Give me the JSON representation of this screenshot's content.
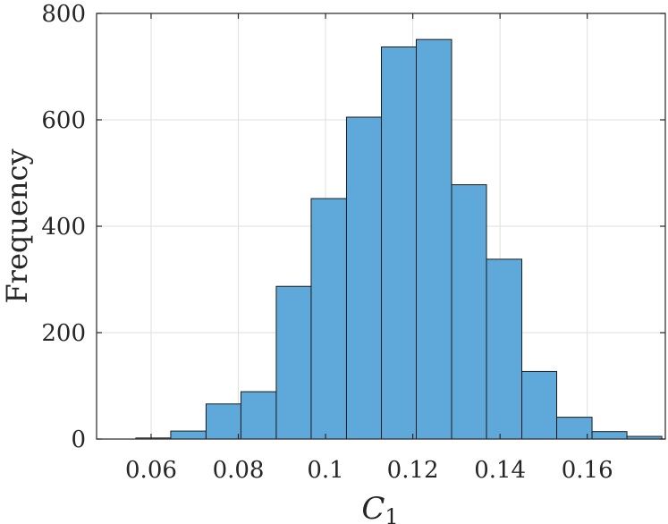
{
  "chart_data": {
    "type": "bar",
    "xlabel": "C",
    "xlabel_subscript": "1",
    "ylabel": "Frequency",
    "xlim": [
      0.0475,
      0.1779
    ],
    "ylim": [
      0,
      800
    ],
    "xticks": [
      0.06,
      0.08,
      0.1,
      0.12,
      0.14,
      0.16
    ],
    "xtick_labels": [
      "0.06",
      "0.08",
      "0.1",
      "0.12",
      "0.14",
      "0.16"
    ],
    "yticks": [
      0,
      200,
      400,
      600,
      800
    ],
    "ytick_labels": [
      "0",
      "200",
      "400",
      "600",
      "800"
    ],
    "grid": true,
    "bar_color": "#5fa8da",
    "bin_edges": [
      0.0565,
      0.0645,
      0.0726,
      0.0806,
      0.0887,
      0.0967,
      0.1048,
      0.1128,
      0.1208,
      0.1289,
      0.1369,
      0.145,
      0.153,
      0.1611,
      0.1691,
      0.1771
    ],
    "values": [
      2,
      15,
      66,
      89,
      287,
      452,
      605,
      737,
      751,
      478,
      338,
      127,
      41,
      14,
      5
    ]
  }
}
